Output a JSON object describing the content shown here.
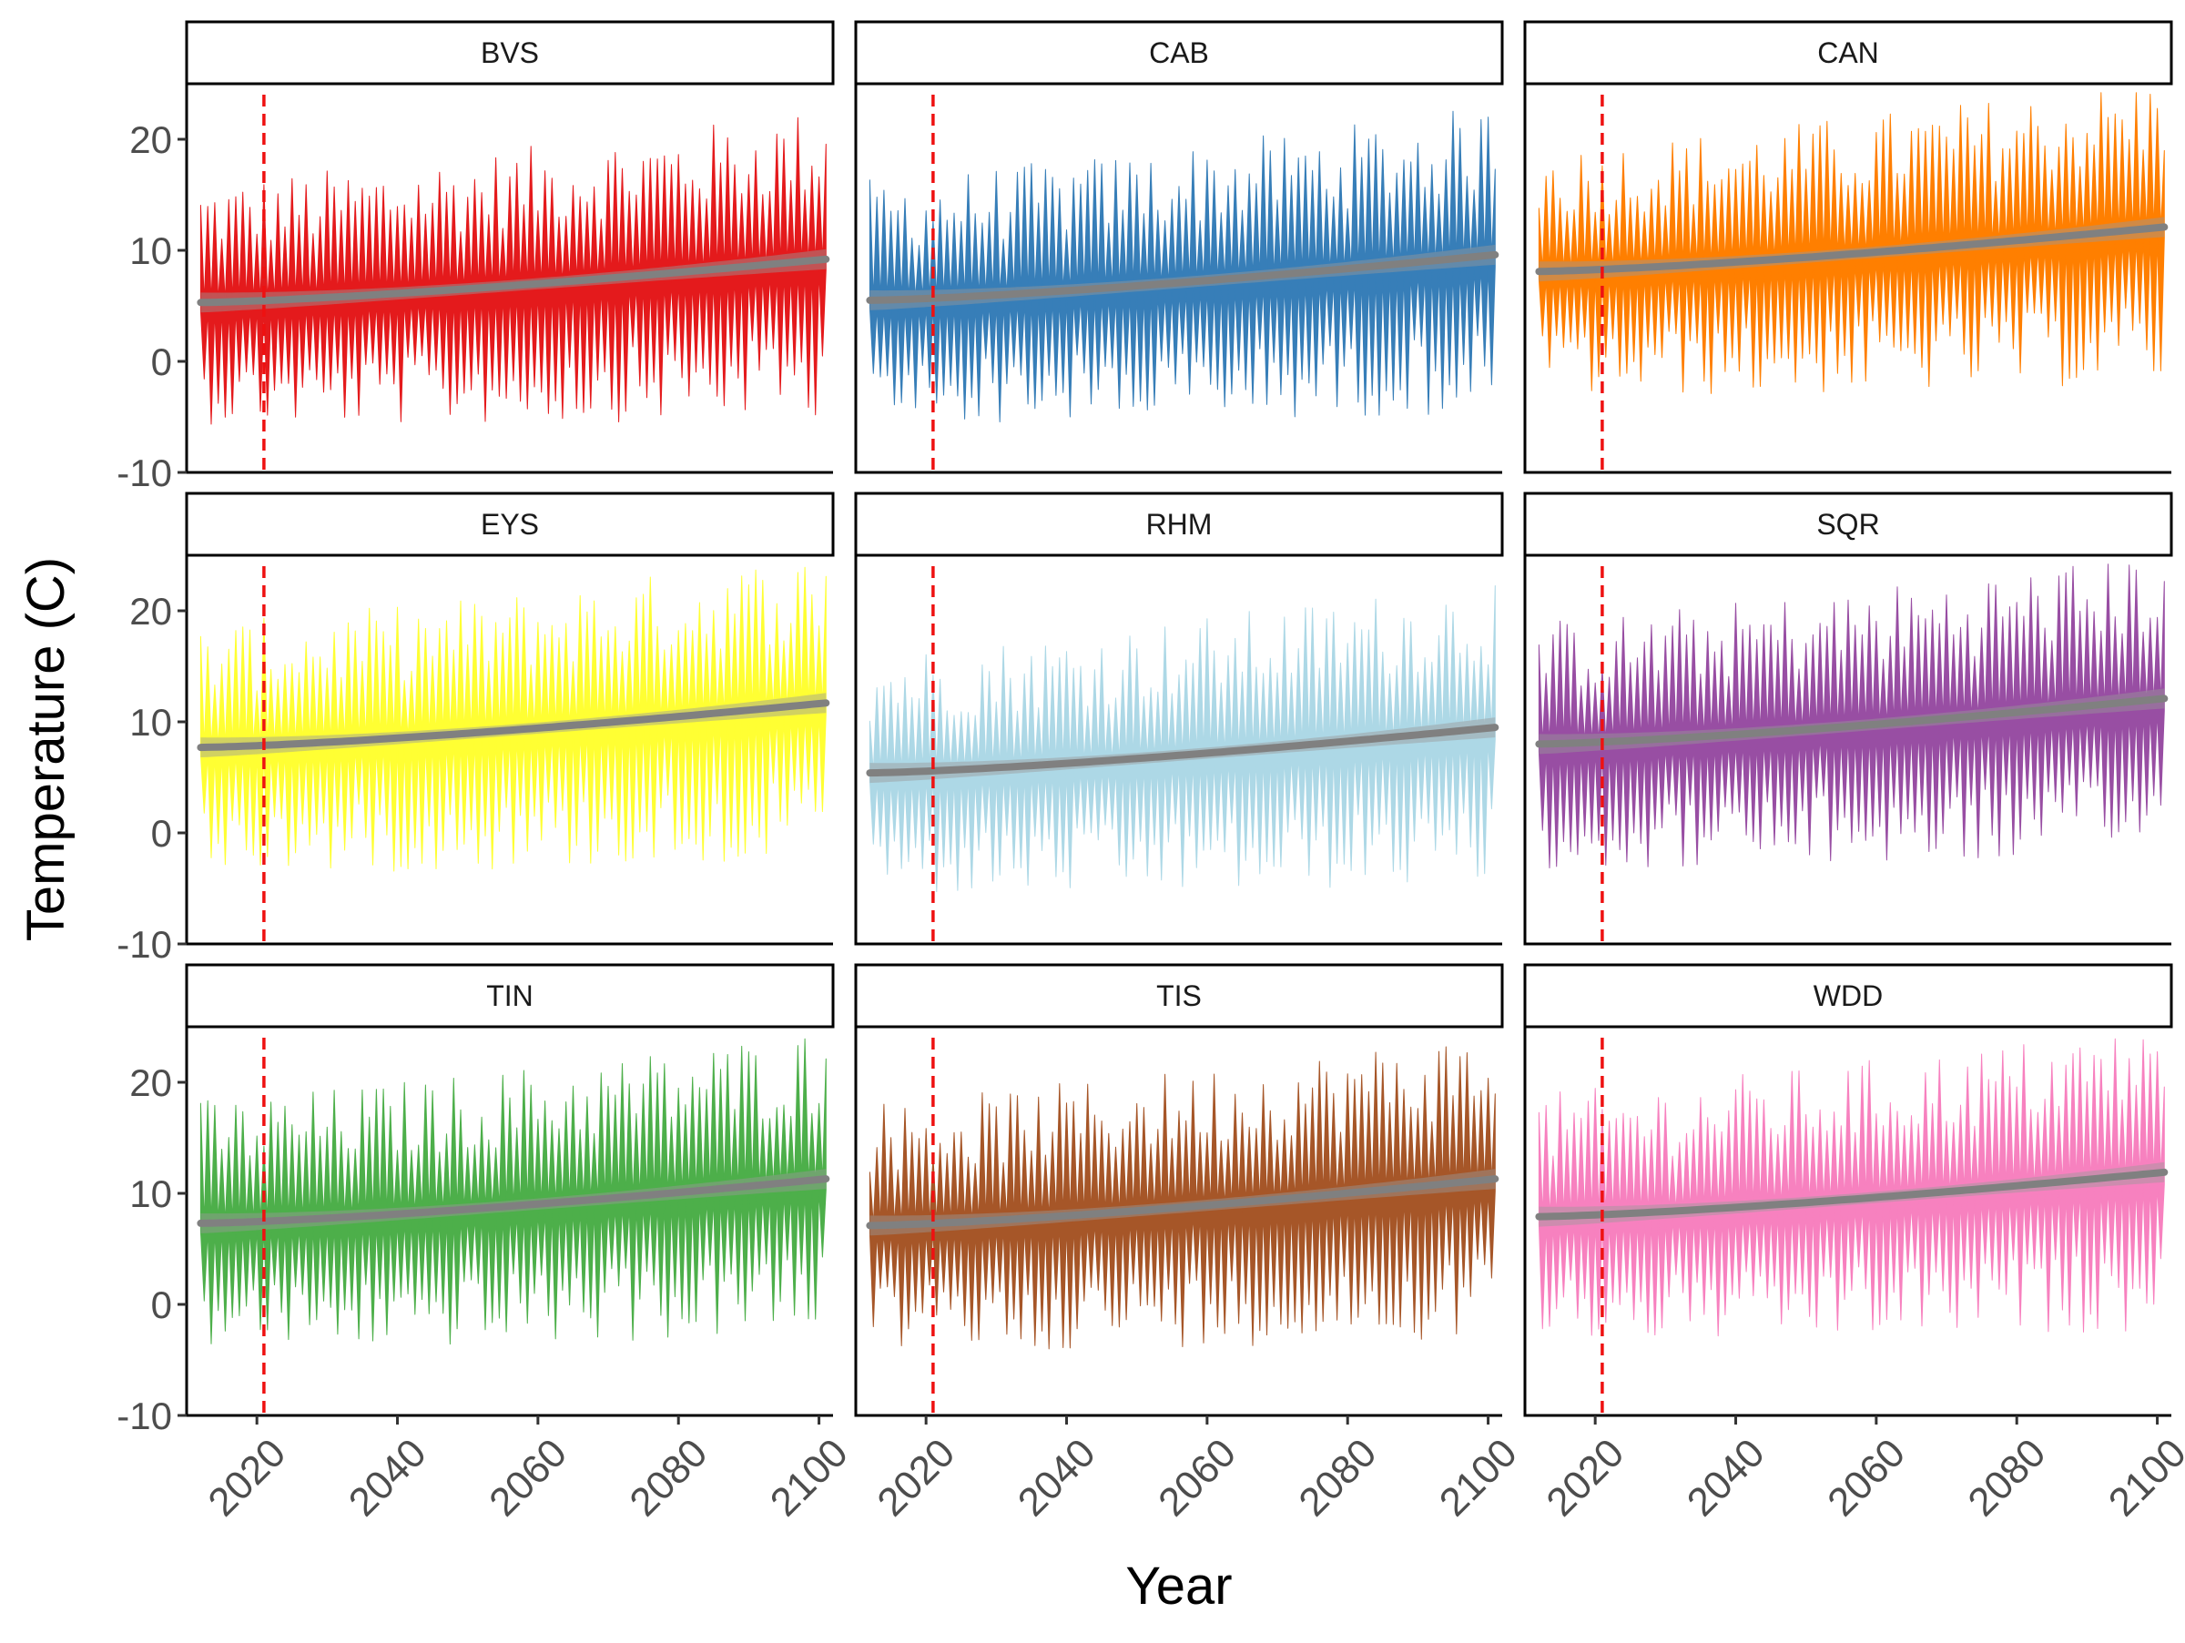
{
  "chart_data": {
    "type": "area",
    "layout": "facet-grid 3x3",
    "xlabel": "Year",
    "ylabel": "Temperature (C)",
    "xlim": [
      2010,
      2102
    ],
    "ylim": [
      -10,
      25
    ],
    "x_ticks": [
      2020,
      2040,
      2060,
      2080,
      2100
    ],
    "y_ticks": [
      -10,
      0,
      10,
      20
    ],
    "reference_line": {
      "x": 2021,
      "color": "#ee1111",
      "style": "dashed"
    },
    "trend_color": "#808080",
    "grid": false,
    "legend": "none",
    "panels": [
      {
        "name": "BVS",
        "color": "#e41a1c",
        "start": 2012,
        "trend_start": 5.3,
        "trend_end": 9.2,
        "mean_start": 5.0,
        "mean_end": 8.6,
        "amp_start": 4.8,
        "amp_end": 6.3,
        "spike_start": 6.5,
        "spike_end": 8.0
      },
      {
        "name": "CAB",
        "color": "#377eb8",
        "start": 2012,
        "trend_start": 5.5,
        "trend_end": 9.6,
        "mean_start": 5.2,
        "mean_end": 8.9,
        "amp_start": 4.8,
        "amp_end": 6.3,
        "spike_start": 6.5,
        "spike_end": 8.0
      },
      {
        "name": "CAN",
        "color": "#ff7f00",
        "start": 2012,
        "trend_start": 8.1,
        "trend_end": 12.1,
        "mean_start": 7.8,
        "mean_end": 11.5,
        "amp_start": 5.0,
        "amp_end": 6.3,
        "spike_start": 6.5,
        "spike_end": 8.0
      },
      {
        "name": "EYS",
        "color": "#ffff33",
        "start": 2012,
        "trend_start": 7.7,
        "trend_end": 11.7,
        "mean_start": 7.4,
        "mean_end": 11.1,
        "amp_start": 5.0,
        "amp_end": 6.3,
        "spike_start": 6.5,
        "spike_end": 8.0
      },
      {
        "name": "RHM",
        "color": "#add8e6",
        "start": 2012,
        "trend_start": 5.4,
        "trend_end": 9.5,
        "mean_start": 5.1,
        "mean_end": 8.8,
        "amp_start": 4.8,
        "amp_end": 6.3,
        "spike_start": 6.5,
        "spike_end": 8.0
      },
      {
        "name": "SQR",
        "color": "#984ea3",
        "start": 2012,
        "trend_start": 8.0,
        "trend_end": 12.1,
        "mean_start": 7.7,
        "mean_end": 11.4,
        "amp_start": 5.0,
        "amp_end": 6.3,
        "spike_start": 6.5,
        "spike_end": 8.0
      },
      {
        "name": "TIN",
        "color": "#4daf4a",
        "start": 2012,
        "trend_start": 7.3,
        "trend_end": 11.3,
        "mean_start": 7.0,
        "mean_end": 10.7,
        "amp_start": 5.0,
        "amp_end": 6.3,
        "spike_start": 6.5,
        "spike_end": 8.0
      },
      {
        "name": "TIS",
        "color": "#a65628",
        "start": 2012,
        "trend_start": 7.1,
        "trend_end": 11.3,
        "mean_start": 6.8,
        "mean_end": 10.6,
        "amp_start": 5.0,
        "amp_end": 6.3,
        "spike_start": 6.5,
        "spike_end": 8.0
      },
      {
        "name": "WDD",
        "color": "#f781bf",
        "start": 2012,
        "trend_start": 7.9,
        "trend_end": 11.9,
        "mean_start": 7.6,
        "mean_end": 11.2,
        "amp_start": 5.0,
        "amp_end": 6.3,
        "spike_start": 6.5,
        "spike_end": 8.0
      }
    ]
  }
}
